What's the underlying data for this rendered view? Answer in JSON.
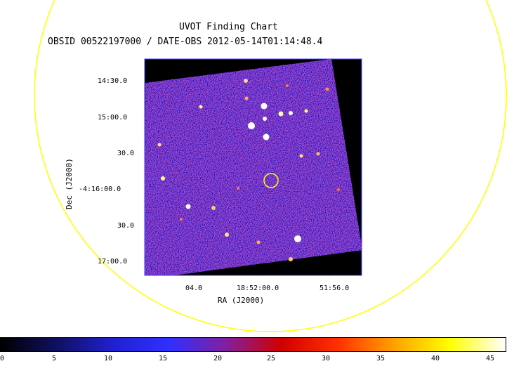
{
  "header": {
    "title": "UVOT Finding Chart",
    "subtitle": "OBSID 00522197000 / DATE-OBS 2012-05-14T01:14:48.4"
  },
  "axes": {
    "x_label": "RA (J2000)",
    "y_label": "Dec (J2000)",
    "x_ticks": [
      "04.0",
      "18:52:00.0",
      "51:56.0"
    ],
    "y_ticks": [
      "14:30.0",
      "15:00.0",
      "30.0",
      "-4:16:00.0",
      "30.0",
      "17:00.0"
    ]
  },
  "colorbar": {
    "ticks": [
      "0",
      "5",
      "10",
      "15",
      "20",
      "25",
      "30",
      "35",
      "40",
      "45"
    ],
    "gradient_stops": [
      "#000000",
      "#101060",
      "#2020d0",
      "#3030ff",
      "#8020a0",
      "#d00000",
      "#ff3000",
      "#ffa000",
      "#ffff00",
      "#ffffff"
    ]
  },
  "colors": {
    "frame": "#4040ff",
    "sky": "#3a33d6",
    "circle": "#ffff00"
  }
}
